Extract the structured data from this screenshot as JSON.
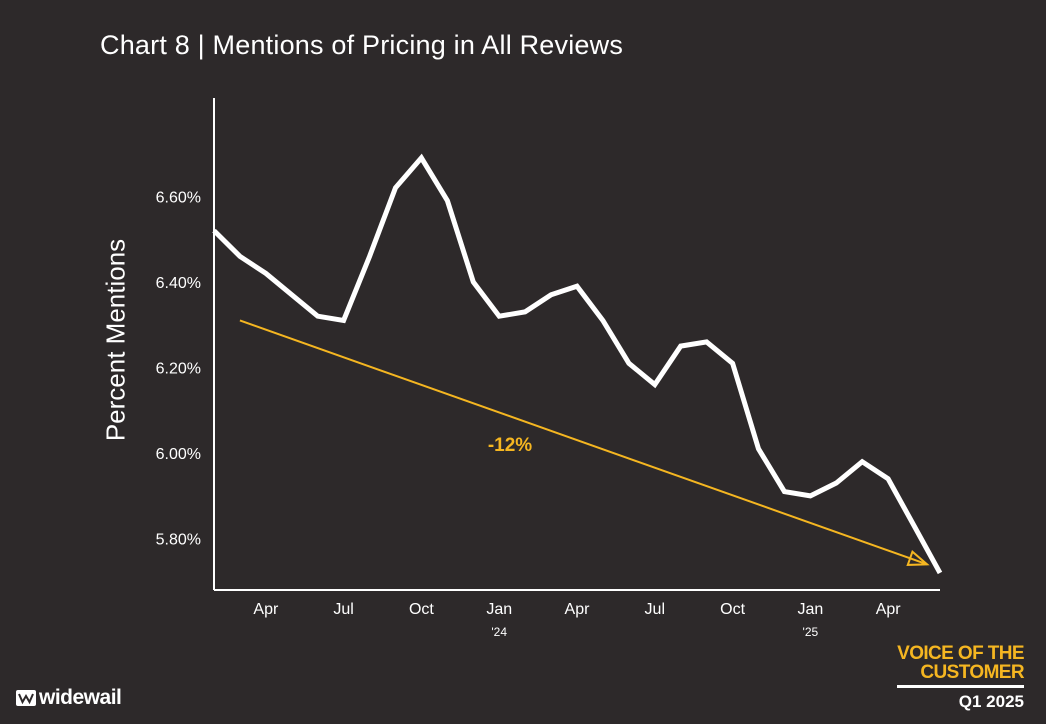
{
  "title": "Chart 8 | Mentions of Pricing in All Reviews",
  "brand": {
    "logo_text": "widewail"
  },
  "badge": {
    "line1": "VOICE OF THE",
    "line2": "CUSTOMER",
    "period": "Q1 2025"
  },
  "colors": {
    "background": "#2d292a",
    "line": "#ffffff",
    "trend": "#f5b621"
  },
  "chart_data": {
    "type": "line",
    "title": "Chart 8 | Mentions of Pricing in All Reviews",
    "ylabel": "Percent Mentions",
    "xlabel": "",
    "ylim": [
      5.68,
      6.83
    ],
    "yticks": [
      {
        "value": 5.8,
        "label": "5.80%"
      },
      {
        "value": 6.0,
        "label": "6.00%"
      },
      {
        "value": 6.2,
        "label": "6.20%"
      },
      {
        "value": 6.4,
        "label": "6.40%"
      },
      {
        "value": 6.6,
        "label": "6.60%"
      }
    ],
    "xticks": [
      {
        "label": "Apr",
        "sub": ""
      },
      {
        "label": "Jul",
        "sub": ""
      },
      {
        "label": "Oct",
        "sub": ""
      },
      {
        "label": "Jan",
        "sub": "'24"
      },
      {
        "label": "Apr",
        "sub": ""
      },
      {
        "label": "Jul",
        "sub": ""
      },
      {
        "label": "Oct",
        "sub": ""
      },
      {
        "label": "Jan",
        "sub": "'25"
      },
      {
        "label": "Apr",
        "sub": ""
      }
    ],
    "grid": false,
    "legend": "none",
    "x": [
      "Feb 2023",
      "Mar 2023",
      "Apr 2023",
      "May 2023",
      "Jun 2023",
      "Jul 2023",
      "Aug 2023",
      "Sep 2023",
      "Oct 2023",
      "Nov 2023",
      "Dec 2023",
      "Jan 2024",
      "Feb 2024",
      "Mar 2024",
      "Apr 2024",
      "May 2024",
      "Jun 2024",
      "Jul 2024",
      "Aug 2024",
      "Sep 2024",
      "Oct 2024",
      "Nov 2024",
      "Dec 2024",
      "Jan 2025",
      "Feb 2025",
      "Mar 2025",
      "Apr 2025",
      "May 2025",
      "Jun 2025"
    ],
    "series": [
      {
        "values": [
          6.52,
          6.46,
          6.42,
          6.37,
          6.32,
          6.31,
          6.46,
          6.62,
          6.69,
          6.59,
          6.4,
          6.32,
          6.33,
          6.37,
          6.39,
          6.31,
          6.21,
          6.16,
          6.25,
          6.26,
          6.21,
          6.01,
          5.91,
          5.9,
          5.93,
          5.98,
          5.94,
          5.83,
          5.72
        ]
      }
    ],
    "trendline": {
      "label": "-12%",
      "start": 6.31,
      "end": 5.74
    }
  }
}
